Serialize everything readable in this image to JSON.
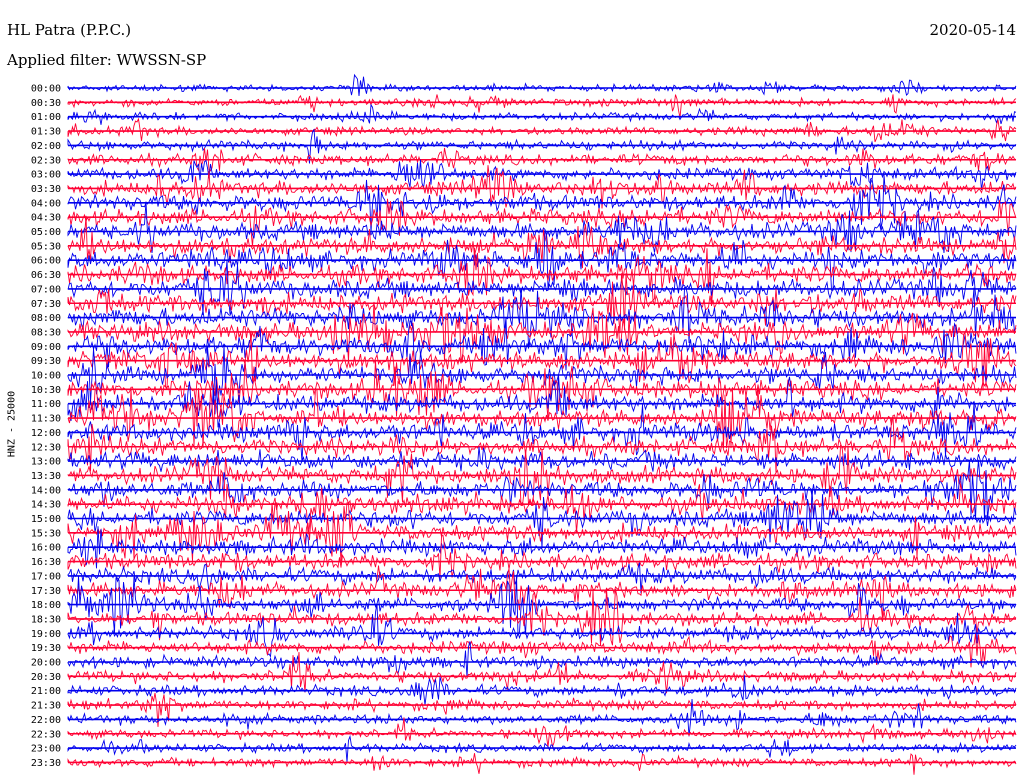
{
  "header": {
    "station": "HL Patra (P.P.C.)",
    "filter_prefix": "Applied filter:",
    "filter_name": "WWSSN-SP",
    "date": "2020-05-14"
  },
  "chart_data": {
    "type": "line",
    "title": "HL Patra (P.P.C.)",
    "subtitle": "Applied filter: WWSSN-SP",
    "date": "2020-05-14",
    "ylabel": "HNZ - 25000",
    "xlabel": "",
    "trace_colors": [
      "#0000ee",
      "#ff0033"
    ],
    "grid": false,
    "row_labels": [
      "00:00",
      "00:30",
      "01:00",
      "01:30",
      "02:00",
      "02:30",
      "03:00",
      "03:30",
      "04:00",
      "04:30",
      "05:00",
      "05:30",
      "06:00",
      "06:30",
      "07:00",
      "07:30",
      "08:00",
      "08:30",
      "09:00",
      "09:30",
      "10:00",
      "10:30",
      "11:00",
      "11:30",
      "12:00",
      "12:30",
      "13:00",
      "13:30",
      "14:00",
      "14:30",
      "15:00",
      "15:30",
      "16:00",
      "16:30",
      "17:00",
      "17:30",
      "18:00",
      "18:30",
      "19:00",
      "19:30",
      "20:00",
      "20:30",
      "21:00",
      "21:30",
      "22:00",
      "22:30",
      "23:00",
      "23:30"
    ],
    "relative_amplitude": [
      0.25,
      0.35,
      0.35,
      0.4,
      0.5,
      0.6,
      0.7,
      0.85,
      1.0,
      1.05,
      1.1,
      1.15,
      1.2,
      1.2,
      1.2,
      1.2,
      1.2,
      1.2,
      1.2,
      1.2,
      1.15,
      1.15,
      1.15,
      1.15,
      1.15,
      1.1,
      1.1,
      1.1,
      1.1,
      1.1,
      1.05,
      1.05,
      1.05,
      1.05,
      1.0,
      0.95,
      0.9,
      0.85,
      0.8,
      0.75,
      0.7,
      0.65,
      0.6,
      0.55,
      0.5,
      0.45,
      0.45,
      0.45
    ]
  }
}
